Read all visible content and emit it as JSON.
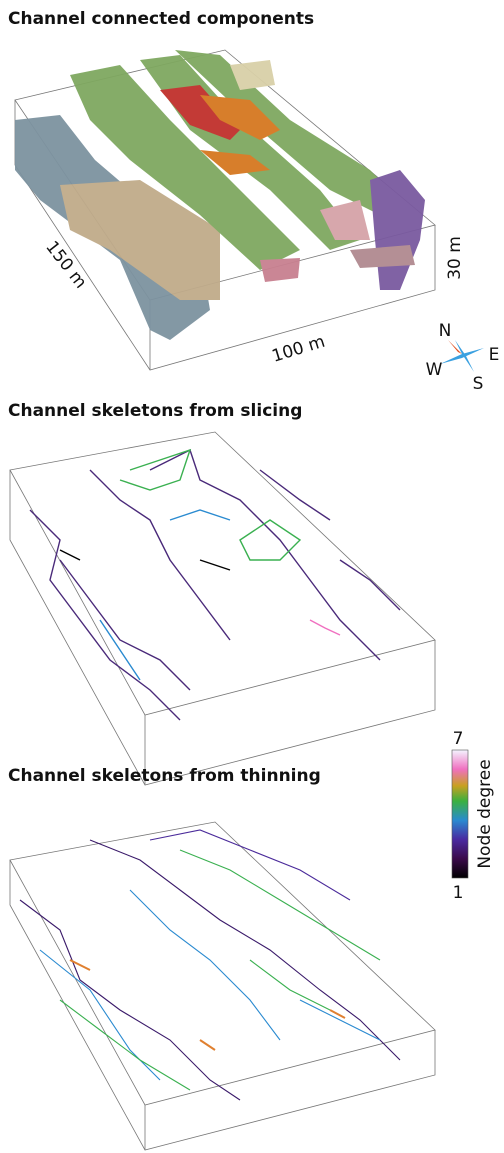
{
  "panels": [
    {
      "title": "Channel connected components"
    },
    {
      "title": "Channel skeletons from slicing"
    },
    {
      "title": "Channel skeletons from thinning"
    }
  ],
  "scale_labels": {
    "length": "150 m",
    "width": "100 m",
    "depth": "30 m"
  },
  "compass": {
    "north": "N",
    "east": "E",
    "south": "S",
    "west": "W"
  },
  "colorbar": {
    "label": "Node degree",
    "max_label": "7",
    "min_label": "1"
  }
}
